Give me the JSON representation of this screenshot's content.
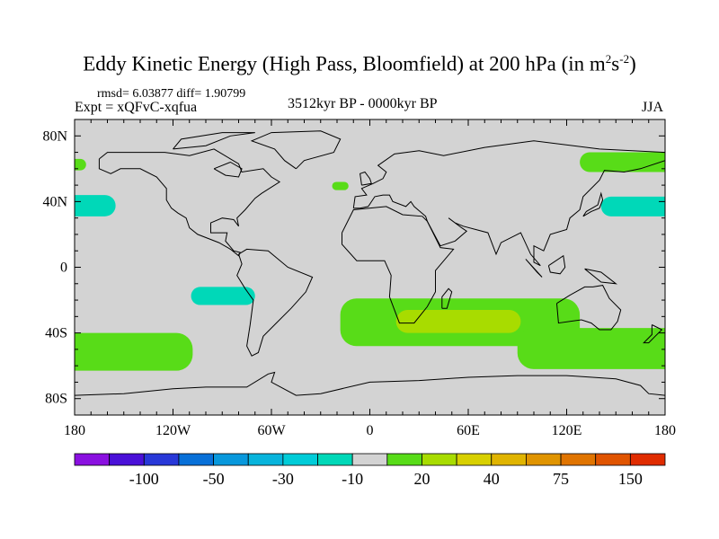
{
  "title": {
    "main": "Eddy Kinetic Energy (High Pass, Bloomfield) at 200 hPa (in m",
    "sup1": "2",
    "mid": "s",
    "sup2": "-2",
    "end": ")"
  },
  "stats": "rmsd= 6.03877 diff= 1.90799",
  "experiment": "Expt = xQFvC-xqfua",
  "period": "3512kyr BP - 0000kyr BP",
  "season": "JJA",
  "chart_data": {
    "type": "heatmap",
    "projection": "cylindrical-equidistant",
    "lon_range": [
      -180,
      180
    ],
    "lat_range": [
      -90,
      90
    ],
    "lat_ticks": [
      {
        "value": 80,
        "label": "80N"
      },
      {
        "value": 40,
        "label": "40N"
      },
      {
        "value": 0,
        "label": "0"
      },
      {
        "value": -40,
        "label": "40S"
      },
      {
        "value": -80,
        "label": "80S"
      }
    ],
    "lon_ticks": [
      {
        "value": -180,
        "label": "180"
      },
      {
        "value": -120,
        "label": "120W"
      },
      {
        "value": -60,
        "label": "60W"
      },
      {
        "value": 0,
        "label": "0"
      },
      {
        "value": 60,
        "label": "60E"
      },
      {
        "value": 120,
        "label": "120E"
      },
      {
        "value": 180,
        "label": "180"
      }
    ],
    "background_color": "#d3d3d3",
    "colorbar": {
      "colors": [
        "#8a10e0",
        "#4a10d8",
        "#2838d8",
        "#0870d8",
        "#0898dc",
        "#08b4dc",
        "#00ccd8",
        "#00d8b8",
        "#d3d3d3",
        "#58dc18",
        "#a8dc00",
        "#d8d000",
        "#e0b400",
        "#e09400",
        "#e07400",
        "#e05400",
        "#e02c00"
      ],
      "labels": [
        {
          "boundary": 2,
          "label": "-100"
        },
        {
          "boundary": 4,
          "label": "-50"
        },
        {
          "boundary": 6,
          "label": "-30"
        },
        {
          "boundary": 8,
          "label": "-10"
        },
        {
          "boundary": 10,
          "label": "20"
        },
        {
          "boundary": 12,
          "label": "40"
        },
        {
          "boundary": 14,
          "label": "75"
        },
        {
          "boundary": 16,
          "label": "150"
        }
      ]
    },
    "regions": [
      {
        "name": "north-pacific-west-negative",
        "color_index": 7,
        "lon": [
          -180,
          -155
        ],
        "lat": [
          31,
          44
        ]
      },
      {
        "name": "north-pacific-east-negative",
        "color_index": 7,
        "lon": [
          141,
          180
        ],
        "lat": [
          31,
          43
        ]
      },
      {
        "name": "southeast-pacific-negative",
        "color_index": 7,
        "lon": [
          -109,
          -70
        ],
        "lat": [
          -23,
          -12
        ]
      },
      {
        "name": "arctic-pacific-positive",
        "color_index": 9,
        "lon": [
          128,
          180
        ],
        "lat": [
          58,
          70
        ]
      },
      {
        "name": "bering-west-positive",
        "color_index": 9,
        "lon": [
          -180,
          -173
        ],
        "lat": [
          59,
          66
        ]
      },
      {
        "name": "north-atlantic-positive",
        "color_index": 9,
        "lon": [
          -23,
          -13
        ],
        "lat": [
          47,
          52
        ]
      },
      {
        "name": "south-indian-positive",
        "color_index": 9,
        "lon": [
          -18,
          128
        ],
        "lat": [
          -48,
          -19
        ]
      },
      {
        "name": "south-indian-core",
        "color_index": 10,
        "lon": [
          16,
          92
        ],
        "lat": [
          -40,
          -26
        ]
      },
      {
        "name": "south-pacific-west-positive",
        "color_index": 9,
        "lon": [
          -180,
          -108
        ],
        "lat": [
          -63,
          -40
        ]
      },
      {
        "name": "australia-south-positive",
        "color_index": 9,
        "lon": [
          90,
          180
        ],
        "lat": [
          -62,
          -37
        ]
      }
    ]
  }
}
